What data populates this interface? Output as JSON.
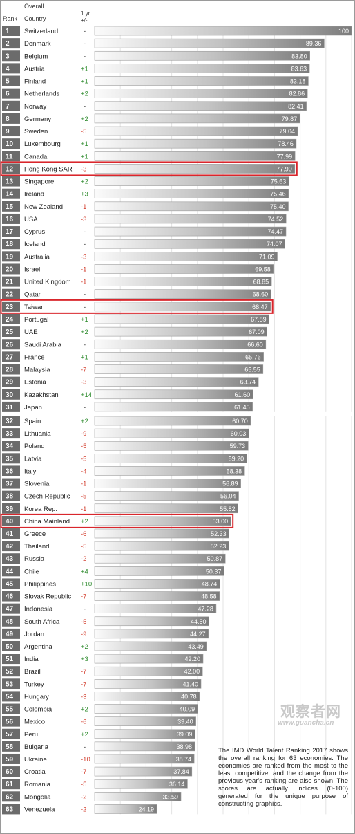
{
  "header": {
    "rank": "Rank",
    "overall": "Overall",
    "country": "Country",
    "change_line1": "1 yr",
    "change_line2": "+/-"
  },
  "colors": {
    "rank_box": "#6b6b6b",
    "bar_dark": "#7f7f7f",
    "bar_light": "#fbfbfb",
    "highlight": "#d9262c",
    "positive": "#2e8b2e",
    "negative": "#d23a2a"
  },
  "chart_data": {
    "type": "bar",
    "orientation": "horizontal",
    "xlim": [
      0,
      100
    ],
    "highlighted": [
      "Hong Kong SAR",
      "Taiwan",
      "China Mainland"
    ],
    "rows": [
      {
        "rank": 1,
        "country": "Switzerland",
        "change": "-",
        "value": 100,
        "label": "100"
      },
      {
        "rank": 2,
        "country": "Denmark",
        "change": "-",
        "value": 89.36,
        "label": "89.36"
      },
      {
        "rank": 3,
        "country": "Belgium",
        "change": "-",
        "value": 83.8,
        "label": "83.80"
      },
      {
        "rank": 4,
        "country": "Austria",
        "change": "+1",
        "value": 83.63,
        "label": "83.63"
      },
      {
        "rank": 5,
        "country": "Finland",
        "change": "+1",
        "value": 83.18,
        "label": "83.18"
      },
      {
        "rank": 6,
        "country": "Netherlands",
        "change": "+2",
        "value": 82.86,
        "label": "82.86"
      },
      {
        "rank": 7,
        "country": "Norway",
        "change": "-",
        "value": 82.41,
        "label": "82.41"
      },
      {
        "rank": 8,
        "country": "Germany",
        "change": "+2",
        "value": 79.87,
        "label": "79.87"
      },
      {
        "rank": 9,
        "country": "Sweden",
        "change": "-5",
        "value": 79.04,
        "label": "79.04"
      },
      {
        "rank": 10,
        "country": "Luxembourg",
        "change": "+1",
        "value": 78.46,
        "label": "78.46"
      },
      {
        "rank": 11,
        "country": "Canada",
        "change": "+1",
        "value": 77.99,
        "label": "77.99"
      },
      {
        "rank": 12,
        "country": "Hong Kong SAR",
        "change": "-3",
        "value": 77.9,
        "label": "77.90"
      },
      {
        "rank": 13,
        "country": "Singapore",
        "change": "+2",
        "value": 75.63,
        "label": "75.63"
      },
      {
        "rank": 14,
        "country": "Ireland",
        "change": "+3",
        "value": 75.46,
        "label": "75.46"
      },
      {
        "rank": 15,
        "country": "New Zealand",
        "change": "-1",
        "value": 75.4,
        "label": "75.40"
      },
      {
        "rank": 16,
        "country": "USA",
        "change": "-3",
        "value": 74.52,
        "label": "74.52"
      },
      {
        "rank": 17,
        "country": "Cyprus",
        "change": "-",
        "value": 74.47,
        "label": "74.47"
      },
      {
        "rank": 18,
        "country": "Iceland",
        "change": "-",
        "value": 74.07,
        "label": "74.07"
      },
      {
        "rank": 19,
        "country": "Australia",
        "change": "-3",
        "value": 71.09,
        "label": "71.09"
      },
      {
        "rank": 20,
        "country": "Israel",
        "change": "-1",
        "value": 69.58,
        "label": "69.58"
      },
      {
        "rank": 21,
        "country": "United Kingdom",
        "change": "-1",
        "value": 68.85,
        "label": "68.85"
      },
      {
        "rank": 22,
        "country": "Qatar",
        "change": "-",
        "value": 68.6,
        "label": "68.60"
      },
      {
        "rank": 23,
        "country": "Taiwan",
        "change": "-",
        "value": 68.47,
        "label": "68.47"
      },
      {
        "rank": 24,
        "country": "Portugal",
        "change": "+1",
        "value": 67.89,
        "label": "67.89"
      },
      {
        "rank": 25,
        "country": "UAE",
        "change": "+2",
        "value": 67.09,
        "label": "67.09"
      },
      {
        "rank": 26,
        "country": "Saudi Arabia",
        "change": "-",
        "value": 66.6,
        "label": "66.60"
      },
      {
        "rank": 27,
        "country": "France",
        "change": "+1",
        "value": 65.76,
        "label": "65.76"
      },
      {
        "rank": 28,
        "country": "Malaysia",
        "change": "-7",
        "value": 65.55,
        "label": "65.55"
      },
      {
        "rank": 29,
        "country": "Estonia",
        "change": "-3",
        "value": 63.74,
        "label": "63.74"
      },
      {
        "rank": 30,
        "country": "Kazakhstan",
        "change": "+14",
        "value": 61.6,
        "label": "61.60"
      },
      {
        "rank": 31,
        "country": "Japan",
        "change": "-",
        "value": 61.45,
        "label": "61.45"
      },
      {
        "rank": 32,
        "country": "Spain",
        "change": "+2",
        "value": 60.7,
        "label": "60.70"
      },
      {
        "rank": 33,
        "country": "Lithuania",
        "change": "-9",
        "value": 60.03,
        "label": "60.03"
      },
      {
        "rank": 34,
        "country": "Poland",
        "change": "-5",
        "value": 59.73,
        "label": "59.73"
      },
      {
        "rank": 35,
        "country": "Latvia",
        "change": "-5",
        "value": 59.2,
        "label": "59.20"
      },
      {
        "rank": 36,
        "country": "Italy",
        "change": "-4",
        "value": 58.38,
        "label": "58.38"
      },
      {
        "rank": 37,
        "country": "Slovenia",
        "change": "-1",
        "value": 56.89,
        "label": "56.89"
      },
      {
        "rank": 38,
        "country": "Czech Republic",
        "change": "-5",
        "value": 56.04,
        "label": "56.04"
      },
      {
        "rank": 39,
        "country": "Korea Rep.",
        "change": "-1",
        "value": 55.82,
        "label": "55.82"
      },
      {
        "rank": 40,
        "country": "China Mainland",
        "change": "+2",
        "value": 53.0,
        "label": "53.00"
      },
      {
        "rank": 41,
        "country": "Greece",
        "change": "-6",
        "value": 52.33,
        "label": "52.33"
      },
      {
        "rank": 42,
        "country": "Thailand",
        "change": "-5",
        "value": 52.23,
        "label": "52.23"
      },
      {
        "rank": 43,
        "country": "Russia",
        "change": "-2",
        "value": 50.87,
        "label": "50.87"
      },
      {
        "rank": 44,
        "country": "Chile",
        "change": "+4",
        "value": 50.37,
        "label": "50.37"
      },
      {
        "rank": 45,
        "country": "Philippines",
        "change": "+10",
        "value": 48.74,
        "label": "48.74"
      },
      {
        "rank": 46,
        "country": "Slovak Republic",
        "change": "-7",
        "value": 48.58,
        "label": "48.58"
      },
      {
        "rank": 47,
        "country": "Indonesia",
        "change": "-",
        "value": 47.28,
        "label": "47.28"
      },
      {
        "rank": 48,
        "country": "South Africa",
        "change": "-5",
        "value": 44.5,
        "label": "44.50"
      },
      {
        "rank": 49,
        "country": "Jordan",
        "change": "-9",
        "value": 44.27,
        "label": "44.27"
      },
      {
        "rank": 50,
        "country": "Argentina",
        "change": "+2",
        "value": 43.49,
        "label": "43.49"
      },
      {
        "rank": 51,
        "country": "India",
        "change": "+3",
        "value": 42.2,
        "label": "42.20"
      },
      {
        "rank": 52,
        "country": "Brazil",
        "change": "-7",
        "value": 42.0,
        "label": "42.00"
      },
      {
        "rank": 53,
        "country": "Turkey",
        "change": "-7",
        "value": 41.4,
        "label": "41.40"
      },
      {
        "rank": 54,
        "country": "Hungary",
        "change": "-3",
        "value": 40.78,
        "label": "40.78"
      },
      {
        "rank": 55,
        "country": "Colombia",
        "change": "+2",
        "value": 40.09,
        "label": "40.09"
      },
      {
        "rank": 56,
        "country": "Mexico",
        "change": "-6",
        "value": 39.4,
        "label": "39.40"
      },
      {
        "rank": 57,
        "country": "Peru",
        "change": "+2",
        "value": 39.09,
        "label": "39.09"
      },
      {
        "rank": 58,
        "country": "Bulgaria",
        "change": "-",
        "value": 38.98,
        "label": "38.98"
      },
      {
        "rank": 59,
        "country": "Ukraine",
        "change": "-10",
        "value": 38.74,
        "label": "38.74"
      },
      {
        "rank": 60,
        "country": "Croatia",
        "change": "-7",
        "value": 37.84,
        "label": "37.84"
      },
      {
        "rank": 61,
        "country": "Romania",
        "change": "-5",
        "value": 36.14,
        "label": "36.14"
      },
      {
        "rank": 62,
        "country": "Mongolia",
        "change": "-2",
        "value": 33.59,
        "label": "33.59"
      },
      {
        "rank": 63,
        "country": "Venezuela",
        "change": "-2",
        "value": 24.19,
        "label": "24.19"
      }
    ]
  },
  "note": "The IMD World Talent Ranking 2017 shows the overall ranking for 63 economies. The economies are ranked from the most to the least competitive, and the change from the previous year's ranking are also shown. The scores are actually indices (0-100) generated for the unique purpose of constructing graphics.",
  "watermark": {
    "line1": "观察者网",
    "line2": "www.guancha.cn"
  }
}
